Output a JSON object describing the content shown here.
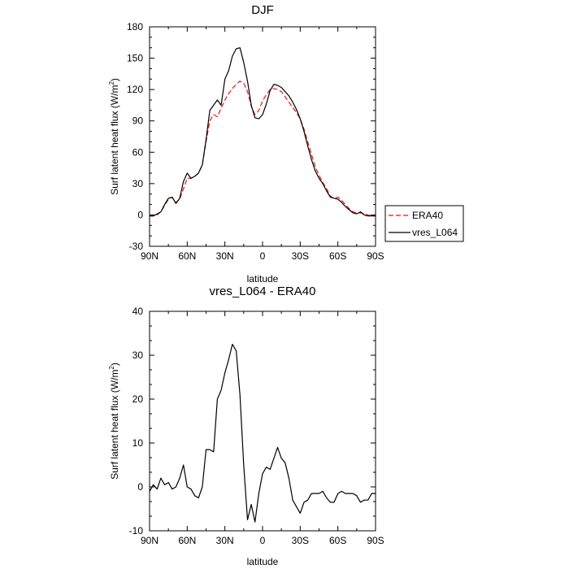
{
  "chart_data": [
    {
      "type": "line",
      "title": "DJF",
      "xlabel": "latitude",
      "ylabel": "Surf latent heat flux (W/m",
      "ylabel_sup": "2",
      "ylabel_close": ")",
      "xlim": [
        -90,
        90
      ],
      "ylim": [
        -30,
        180
      ],
      "xticks": [
        -90,
        -60,
        -30,
        0,
        30,
        60,
        90
      ],
      "xtick_labels": [
        "90N",
        "60N",
        "30N",
        "0",
        "30S",
        "60S",
        "90S"
      ],
      "yticks": [
        -30,
        0,
        30,
        60,
        90,
        120,
        150,
        180
      ],
      "ytick_labels": [
        "-30",
        "0",
        "30",
        "60",
        "90",
        "120",
        "150",
        "180"
      ],
      "legend": {
        "placement": "right",
        "entries": [
          {
            "label": "ERA40",
            "color": "#ee1111",
            "style": "dashed"
          },
          {
            "label": "vres_L064",
            "color": "#000000",
            "style": "solid"
          }
        ]
      },
      "series": [
        {
          "name": "ERA40",
          "color": "#ee1111",
          "style": "dashed",
          "x": [
            -90,
            -87,
            -84,
            -81,
            -78,
            -75,
            -72,
            -69,
            -66,
            -63,
            -60,
            -57,
            -54,
            -51,
            -48,
            -45,
            -42,
            -39,
            -36,
            -33,
            -30,
            -27,
            -24,
            -21,
            -18,
            -15,
            -12,
            -9,
            -6,
            -3,
            0,
            3,
            6,
            9,
            12,
            15,
            18,
            21,
            24,
            27,
            30,
            33,
            36,
            39,
            42,
            45,
            48,
            51,
            54,
            57,
            60,
            63,
            66,
            69,
            72,
            75,
            78,
            81,
            84,
            87,
            90
          ],
          "y": [
            -1,
            -1,
            0,
            3,
            9,
            15,
            17,
            12,
            15,
            25,
            35,
            35,
            37,
            40,
            48,
            70,
            90,
            96,
            94,
            102,
            110,
            116,
            121,
            125,
            128,
            126,
            118,
            104,
            96,
            100,
            109,
            115,
            120,
            121,
            120,
            118,
            113,
            108,
            103,
            98,
            92,
            82,
            70,
            58,
            46,
            38,
            31,
            25,
            18,
            16,
            17,
            14,
            10,
            6,
            3,
            2,
            2,
            1,
            0,
            -1,
            -1
          ]
        },
        {
          "name": "vres_L064",
          "color": "#000000",
          "style": "solid",
          "x": [
            -90,
            -87,
            -84,
            -81,
            -78,
            -75,
            -72,
            -69,
            -66,
            -63,
            -60,
            -57,
            -54,
            -51,
            -48,
            -45,
            -42,
            -39,
            -36,
            -33,
            -30,
            -27,
            -24,
            -21,
            -18,
            -15,
            -12,
            -9,
            -6,
            -3,
            0,
            3,
            6,
            9,
            12,
            15,
            18,
            21,
            24,
            27,
            30,
            33,
            36,
            39,
            42,
            45,
            48,
            51,
            54,
            57,
            60,
            63,
            66,
            69,
            72,
            75,
            78,
            81,
            84,
            87,
            90
          ],
          "y": [
            -1,
            -1,
            1,
            3,
            10,
            16,
            17,
            11,
            16,
            32,
            40,
            35,
            37,
            40,
            48,
            72,
            100,
            105,
            110,
            105,
            130,
            138,
            152,
            159,
            160,
            146,
            128,
            105,
            93,
            92,
            96,
            106,
            119,
            125,
            124,
            122,
            118,
            114,
            108,
            101,
            92,
            80,
            66,
            53,
            42,
            35,
            30,
            23,
            17,
            16,
            15,
            12,
            8,
            5,
            2,
            1,
            3,
            0,
            -1,
            -1,
            -1
          ]
        }
      ]
    },
    {
      "type": "line",
      "title": "vres_L064 - ERA40",
      "xlabel": "latitude",
      "ylabel": "Surf latent heat flux (W/m",
      "ylabel_sup": "2",
      "ylabel_close": ")",
      "xlim": [
        -90,
        90
      ],
      "ylim": [
        -10,
        40
      ],
      "xticks": [
        -90,
        -60,
        -30,
        0,
        30,
        60,
        90
      ],
      "xtick_labels": [
        "90N",
        "60N",
        "30N",
        "0",
        "30S",
        "60S",
        "90S"
      ],
      "yticks": [
        -10,
        0,
        10,
        20,
        30,
        40
      ],
      "ytick_labels": [
        "-10",
        "0",
        "10",
        "20",
        "30",
        "40"
      ],
      "series": [
        {
          "name": "vres_L064 - ERA40",
          "color": "#000000",
          "style": "solid",
          "x": [
            -90,
            -87,
            -84,
            -81,
            -78,
            -75,
            -72,
            -69,
            -66,
            -63,
            -60,
            -57,
            -54,
            -51,
            -48,
            -45,
            -42,
            -39,
            -36,
            -33,
            -30,
            -27,
            -24,
            -21,
            -18,
            -15,
            -12,
            -9,
            -6,
            -3,
            0,
            3,
            6,
            9,
            12,
            15,
            18,
            21,
            24,
            27,
            30,
            33,
            36,
            39,
            42,
            45,
            48,
            51,
            54,
            57,
            60,
            63,
            66,
            69,
            72,
            75,
            78,
            81,
            84,
            87,
            90
          ],
          "y": [
            -1,
            0.5,
            -0.5,
            2,
            0.5,
            1,
            -0.5,
            0,
            2,
            5,
            0,
            -0.5,
            -2,
            -2.5,
            0,
            8.5,
            8.5,
            8,
            20,
            22,
            26,
            29,
            32.5,
            31,
            21,
            5,
            -7.5,
            -4,
            -8,
            -1.5,
            3,
            4.5,
            4,
            6.5,
            9,
            6.5,
            5.5,
            2,
            -3,
            -4.5,
            -6,
            -3.5,
            -3,
            -1.5,
            -1.5,
            -1.5,
            -1,
            -2.5,
            -3.5,
            -3.5,
            -1.5,
            -1,
            -1.5,
            -1.5,
            -1.5,
            -2,
            -3.5,
            -3,
            -3,
            -1.5,
            -1.5
          ]
        }
      ]
    }
  ]
}
